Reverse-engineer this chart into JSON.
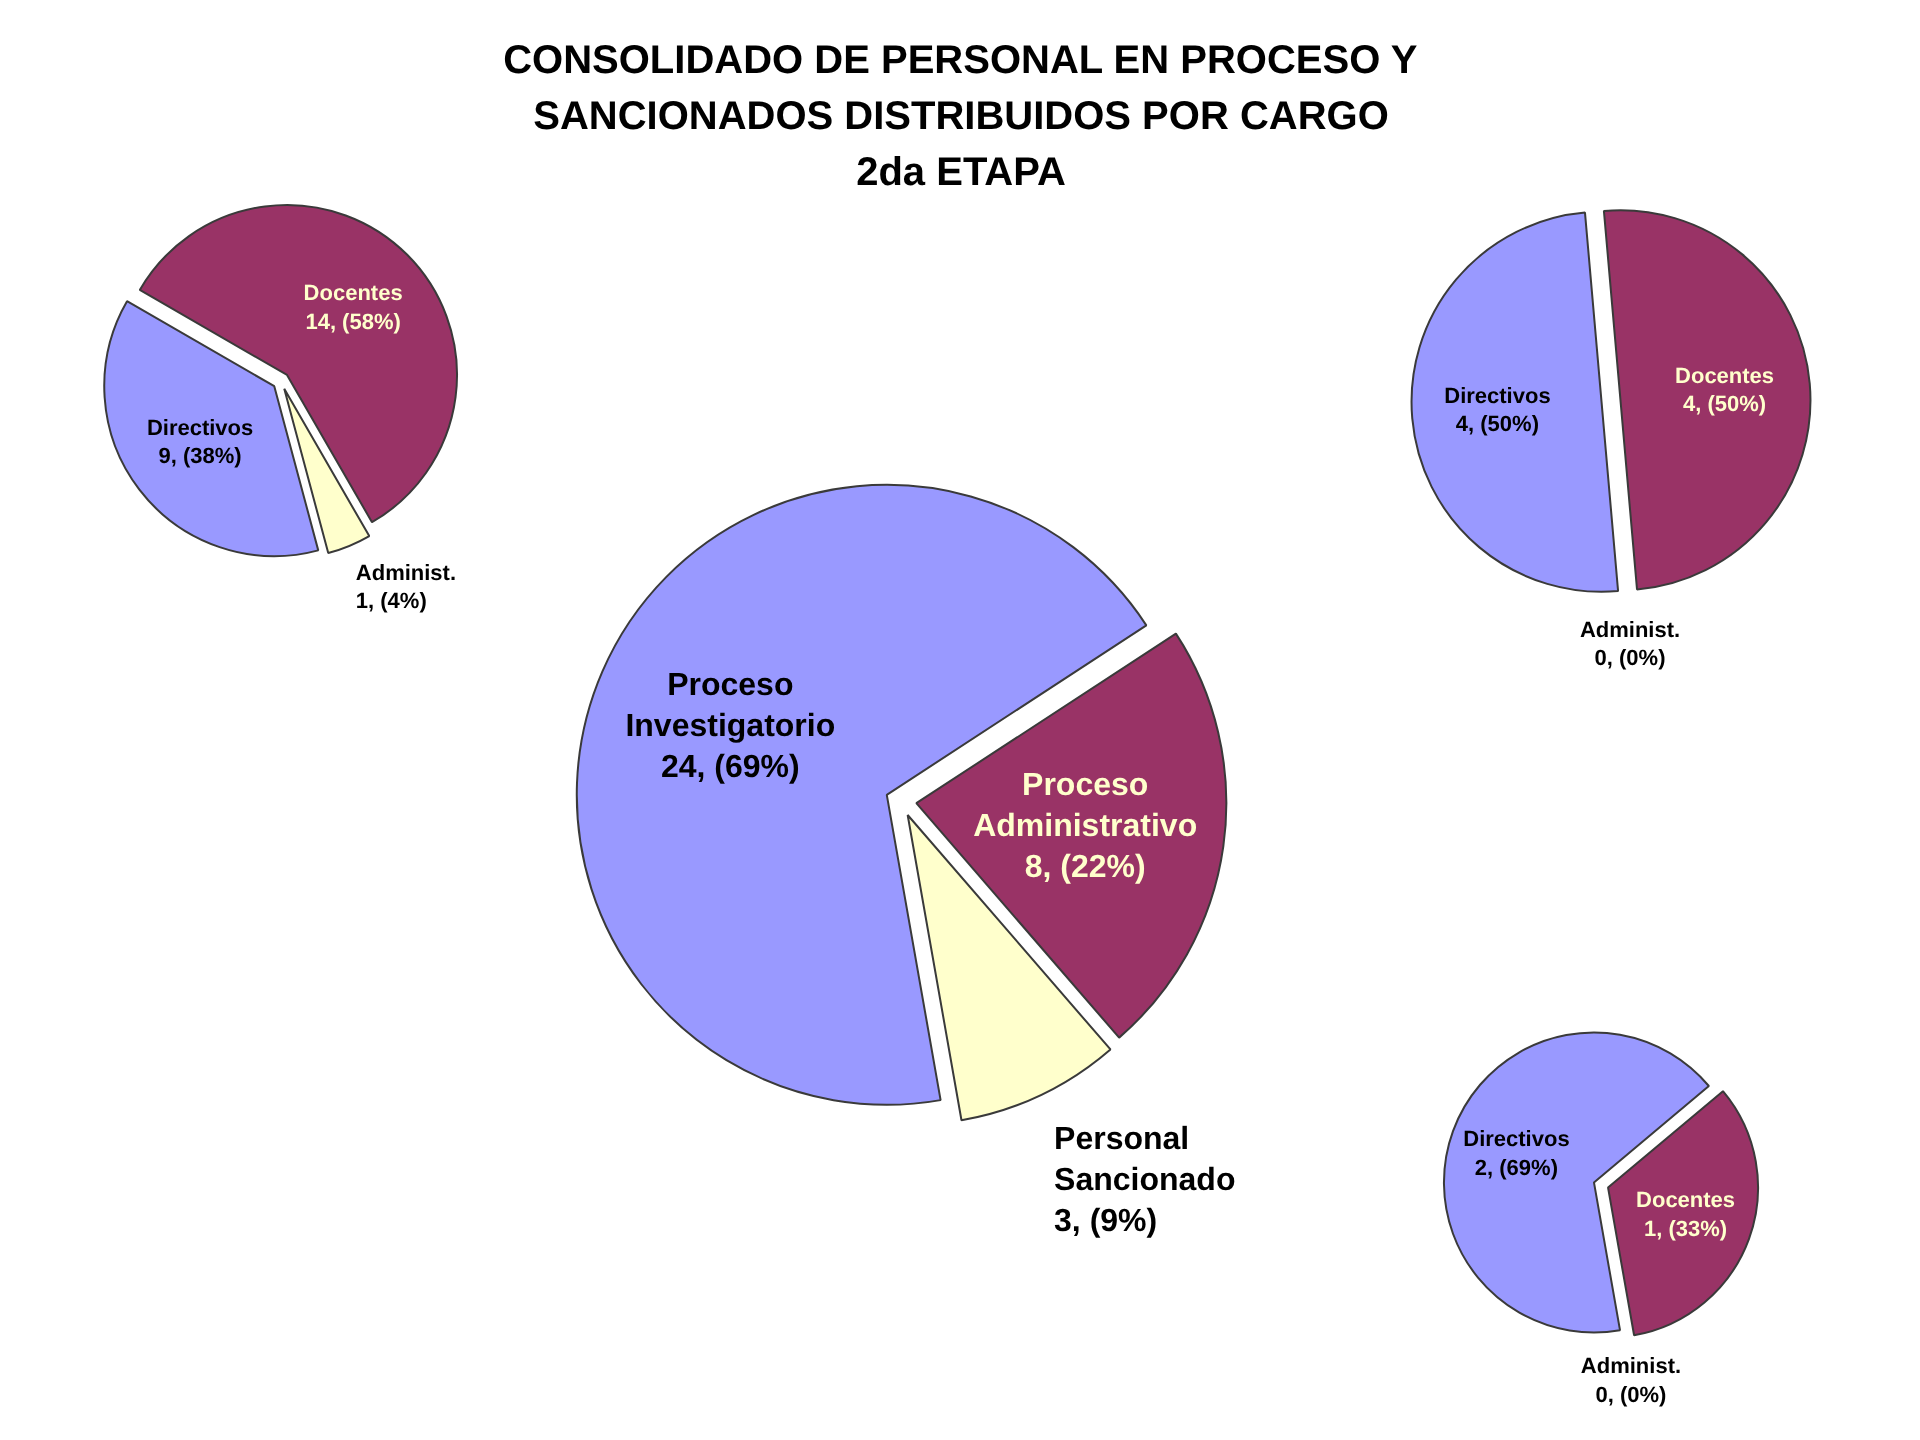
{
  "chart_data": [
    {
      "type": "pie",
      "title": "CONSOLIDADO DE PERSONAL EN PROCESO Y SANCIONADOS DISTRIBUIDOS POR CARGO 2da ETAPA",
      "categories": [
        "Docentes",
        "Administ.",
        "Directivos"
      ],
      "values": [
        14,
        1,
        9
      ],
      "colors": [
        "#993366",
        "#ffffcc",
        "#9999ff"
      ],
      "value_labels": [
        "14, (58%)",
        "1, (4%)",
        "9, (38%)"
      ]
    },
    {
      "type": "pie",
      "categories": [
        "Docentes",
        "Administ.",
        "Directivos"
      ],
      "values": [
        4,
        0,
        4
      ],
      "colors": [
        "#993366",
        "#ffffcc",
        "#9999ff"
      ],
      "value_labels": [
        "4, (50%)",
        "0, (0%)",
        "4, (50%)"
      ]
    },
    {
      "type": "pie",
      "categories": [
        "Proceso Investigatorio",
        "Proceso Administrativo",
        "Personal Sancionado"
      ],
      "values": [
        24,
        8,
        3
      ],
      "colors": [
        "#9999ff",
        "#993366",
        "#ffffcc"
      ],
      "value_labels": [
        "24, (69%)",
        "8, (22%)",
        "3, (9%)"
      ]
    },
    {
      "type": "pie",
      "categories": [
        "Docentes",
        "Administ.",
        "Directivos"
      ],
      "values": [
        1,
        0,
        2
      ],
      "colors": [
        "#993366",
        "#ffffcc",
        "#9999ff"
      ],
      "value_labels": [
        "1, (33%)",
        "0, (0%)",
        "2, (69%)"
      ]
    }
  ]
}
